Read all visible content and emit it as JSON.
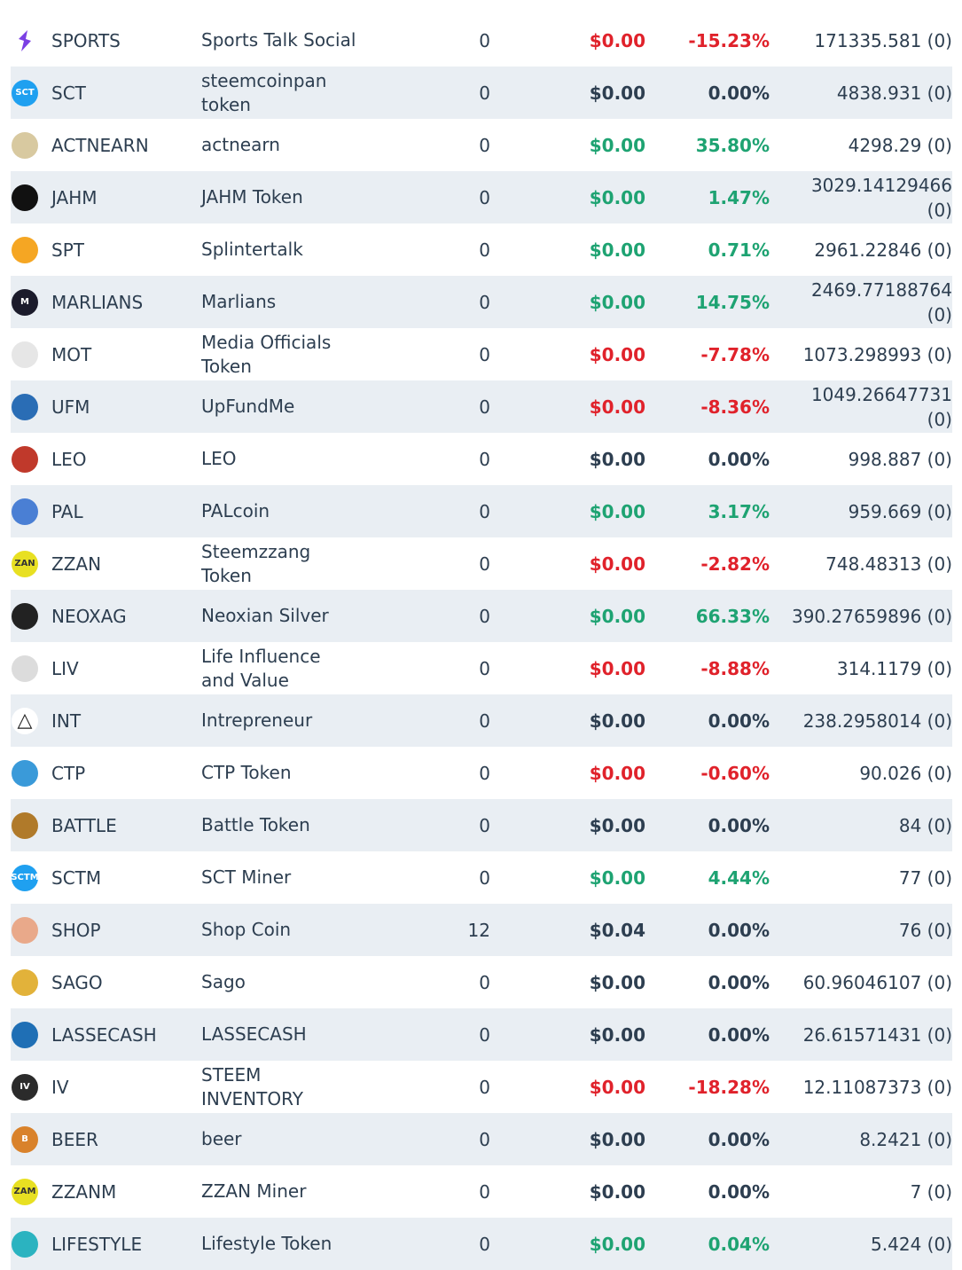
{
  "rows": [
    {
      "icon": "sports-icon",
      "icon_text": "",
      "icon_color": "#7b3fe4",
      "symbol": "SPORTS",
      "name": "Sports Talk Social",
      "qty": "0",
      "price": "$0.00",
      "price_status": "red",
      "change": "-15.23%",
      "change_status": "red",
      "balance": "171335.581 (0)"
    },
    {
      "icon": "sct-icon",
      "icon_text": "SCT",
      "icon_color": "#1fa0f0",
      "symbol": "SCT",
      "name": "steemcoinpan token",
      "qty": "0",
      "price": "$0.00",
      "price_status": "neutral",
      "change": "0.00%",
      "change_status": "neutral",
      "balance": "4838.931 (0)"
    },
    {
      "icon": "actnearn-icon",
      "icon_text": "",
      "icon_color": "#d8c9a0",
      "symbol": "ACTNEARN",
      "name": "actnearn",
      "qty": "0",
      "price": "$0.00",
      "price_status": "green",
      "change": "35.80%",
      "change_status": "green",
      "balance": "4298.29 (0)"
    },
    {
      "icon": "jahm-icon",
      "icon_text": "",
      "icon_color": "#111111",
      "symbol": "JAHM",
      "name": "JAHM Token",
      "qty": "0",
      "price": "$0.00",
      "price_status": "green",
      "change": "1.47%",
      "change_status": "green",
      "balance": "3029.14129466 (0)"
    },
    {
      "icon": "spt-icon",
      "icon_text": "",
      "icon_color": "#f5a623",
      "symbol": "SPT",
      "name": "Splintertalk",
      "qty": "0",
      "price": "$0.00",
      "price_status": "green",
      "change": "0.71%",
      "change_status": "green",
      "balance": "2961.22846 (0)"
    },
    {
      "icon": "marlians-icon",
      "icon_text": "M",
      "icon_color": "#1b1b2b",
      "symbol": "MARLIANS",
      "name": "Marlians",
      "qty": "0",
      "price": "$0.00",
      "price_status": "green",
      "change": "14.75%",
      "change_status": "green",
      "balance": "2469.77188764 (0)"
    },
    {
      "icon": "mot-icon",
      "icon_text": "",
      "icon_color": "#e6e6e6",
      "symbol": "MOT",
      "name": "Media Officials Token",
      "qty": "0",
      "price": "$0.00",
      "price_status": "red",
      "change": "-7.78%",
      "change_status": "red",
      "balance": "1073.298993 (0)"
    },
    {
      "icon": "ufm-icon",
      "icon_text": "",
      "icon_color": "#2a6db5",
      "symbol": "UFM",
      "name": "UpFundMe",
      "qty": "0",
      "price": "$0.00",
      "price_status": "red",
      "change": "-8.36%",
      "change_status": "red",
      "balance": "1049.26647731 (0)"
    },
    {
      "icon": "leo-icon",
      "icon_text": "",
      "icon_color": "#c0392b",
      "symbol": "LEO",
      "name": "LEO",
      "qty": "0",
      "price": "$0.00",
      "price_status": "neutral",
      "change": "0.00%",
      "change_status": "neutral",
      "balance": "998.887 (0)"
    },
    {
      "icon": "pal-icon",
      "icon_text": "",
      "icon_color": "#4a7fd4",
      "symbol": "PAL",
      "name": "PALcoin",
      "qty": "0",
      "price": "$0.00",
      "price_status": "green",
      "change": "3.17%",
      "change_status": "green",
      "balance": "959.669 (0)"
    },
    {
      "icon": "zzan-icon",
      "icon_text": "ZAN",
      "icon_color": "#e8e022",
      "symbol": "ZZAN",
      "name": "Steemzzang Token",
      "qty": "0",
      "price": "$0.00",
      "price_status": "red",
      "change": "-2.82%",
      "change_status": "red",
      "balance": "748.48313 (0)"
    },
    {
      "icon": "neoxag-icon",
      "icon_text": "",
      "icon_color": "#222222",
      "symbol": "NEOXAG",
      "name": "Neoxian Silver",
      "qty": "0",
      "price": "$0.00",
      "price_status": "green",
      "change": "66.33%",
      "change_status": "green",
      "balance": "390.27659896 (0)"
    },
    {
      "icon": "liv-icon",
      "icon_text": "",
      "icon_color": "#dcdcdc",
      "symbol": "LIV",
      "name": "Life Influence and Value",
      "qty": "0",
      "price": "$0.00",
      "price_status": "red",
      "change": "-8.88%",
      "change_status": "red",
      "balance": "314.1179 (0)"
    },
    {
      "icon": "int-triangle-icon",
      "icon_text": "",
      "icon_color": "#ffffff",
      "symbol": "INT",
      "name": "Intrepreneur",
      "qty": "0",
      "price": "$0.00",
      "price_status": "neutral",
      "change": "0.00%",
      "change_status": "neutral",
      "balance": "238.2958014 (0)"
    },
    {
      "icon": "ctp-icon",
      "icon_text": "",
      "icon_color": "#3a9ad9",
      "symbol": "CTP",
      "name": "CTP Token",
      "qty": "0",
      "price": "$0.00",
      "price_status": "red",
      "change": "-0.60%",
      "change_status": "red",
      "balance": "90.026 (0)"
    },
    {
      "icon": "battle-icon",
      "icon_text": "",
      "icon_color": "#b07a2a",
      "symbol": "BATTLE",
      "name": "Battle Token",
      "qty": "0",
      "price": "$0.00",
      "price_status": "neutral",
      "change": "0.00%",
      "change_status": "neutral",
      "balance": "84 (0)"
    },
    {
      "icon": "sctm-icon",
      "icon_text": "SCTM",
      "icon_color": "#1fa0f0",
      "symbol": "SCTM",
      "name": "SCT Miner",
      "qty": "0",
      "price": "$0.00",
      "price_status": "green",
      "change": "4.44%",
      "change_status": "green",
      "balance": "77 (0)"
    },
    {
      "icon": "shop-icon",
      "icon_text": "",
      "icon_color": "#e9a98a",
      "symbol": "SHOP",
      "name": "Shop Coin",
      "qty": "12",
      "price": "$0.04",
      "price_status": "neutral",
      "change": "0.00%",
      "change_status": "neutral",
      "balance": "76 (0)"
    },
    {
      "icon": "sago-icon",
      "icon_text": "",
      "icon_color": "#e2b23a",
      "symbol": "SAGO",
      "name": "Sago",
      "qty": "0",
      "price": "$0.00",
      "price_status": "neutral",
      "change": "0.00%",
      "change_status": "neutral",
      "balance": "60.96046107 (0)"
    },
    {
      "icon": "lassecash-icon",
      "icon_text": "",
      "icon_color": "#1f6fb5",
      "symbol": "LASSECASH",
      "name": "LASSECASH",
      "qty": "0",
      "price": "$0.00",
      "price_status": "neutral",
      "change": "0.00%",
      "change_status": "neutral",
      "balance": "26.61571431 (0)"
    },
    {
      "icon": "iv-icon",
      "icon_text": "IV",
      "icon_color": "#2b2b2b",
      "symbol": "IV",
      "name": "STEEM INVENTORY",
      "qty": "0",
      "price": "$0.00",
      "price_status": "red",
      "change": "-18.28%",
      "change_status": "red",
      "balance": "12.11087373 (0)"
    },
    {
      "icon": "beer-icon",
      "icon_text": "B",
      "icon_color": "#d9822b",
      "symbol": "BEER",
      "name": "beer",
      "qty": "0",
      "price": "$0.00",
      "price_status": "neutral",
      "change": "0.00%",
      "change_status": "neutral",
      "balance": "8.2421 (0)"
    },
    {
      "icon": "zzanm-icon",
      "icon_text": "ZAM",
      "icon_color": "#e8e022",
      "symbol": "ZZANM",
      "name": "ZZAN Miner",
      "qty": "0",
      "price": "$0.00",
      "price_status": "neutral",
      "change": "0.00%",
      "change_status": "neutral",
      "balance": "7 (0)"
    },
    {
      "icon": "lifestyle-icon",
      "icon_text": "",
      "icon_color": "#2bb3c0",
      "symbol": "LIFESTYLE",
      "name": "Lifestyle Token",
      "qty": "0",
      "price": "$0.00",
      "price_status": "green",
      "change": "0.04%",
      "change_status": "green",
      "balance": "5.424 (0)"
    }
  ]
}
